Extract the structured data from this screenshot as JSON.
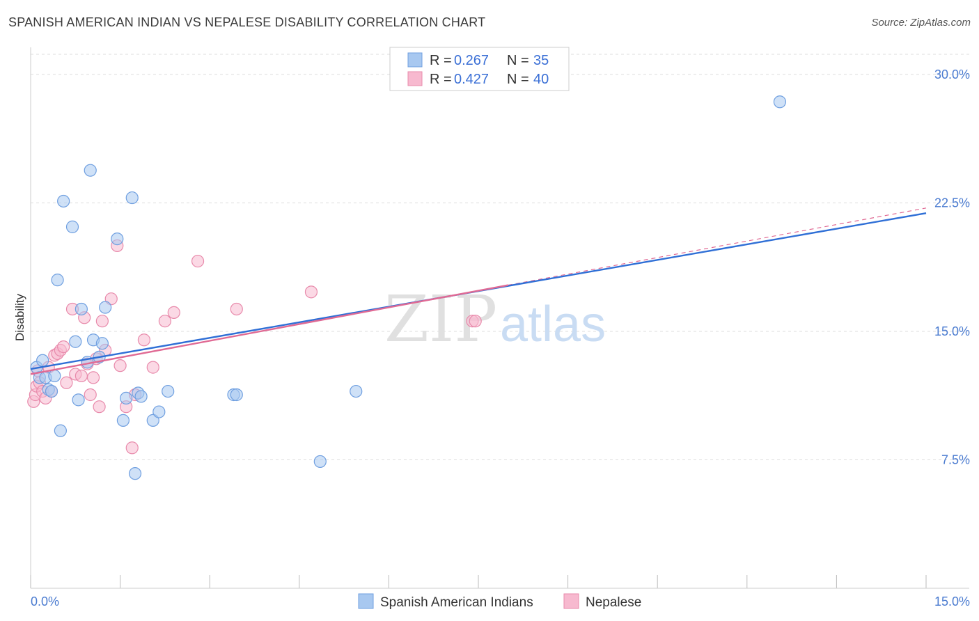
{
  "title": "SPANISH AMERICAN INDIAN VS NEPALESE DISABILITY CORRELATION CHART",
  "source": "Source: ZipAtlas.com",
  "watermark": {
    "part1": "ZIP",
    "part2": "atlas"
  },
  "colors": {
    "blue_fill": "#a8c8f0",
    "blue_stroke": "#6f9fe0",
    "blue_line": "#2f6fd6",
    "pink_fill": "#f7b9cf",
    "pink_stroke": "#e88aab",
    "pink_line": "#e06a94",
    "grid": "#dddddd",
    "axis_text": "#4a7bd0"
  },
  "legend": {
    "rows": [
      {
        "r_label": "R =",
        "r_value": "0.267",
        "n_label": "N =",
        "n_value": "35",
        "series": "blue"
      },
      {
        "r_label": "R =",
        "r_value": "0.427",
        "n_label": "N =",
        "n_value": "40",
        "series": "pink"
      }
    ]
  },
  "bottom_legend": [
    "Spanish American Indians",
    "Nepalese"
  ],
  "chart_data": {
    "type": "scatter",
    "title": "SPANISH AMERICAN INDIAN VS NEPALESE DISABILITY CORRELATION CHART",
    "xlabel": "",
    "ylabel": "Disability",
    "xlim": [
      0,
      15
    ],
    "ylim": [
      0,
      31.5
    ],
    "x_tick_labels": [
      {
        "value": 0,
        "label": "0.0%"
      },
      {
        "value": 15,
        "label": "15.0%"
      }
    ],
    "x_tick_marks": [
      0,
      1.5,
      3,
      4.5,
      6,
      7.5,
      9,
      10.5,
      12,
      13.5,
      15
    ],
    "y_ticks": [
      {
        "value": 7.5,
        "label": "7.5%"
      },
      {
        "value": 15,
        "label": "15.0%"
      },
      {
        "value": 22.5,
        "label": "22.5%"
      },
      {
        "value": 30,
        "label": "30.0%"
      }
    ],
    "series": [
      {
        "name": "Spanish American Indians",
        "color": "blue",
        "r": 0.267,
        "n": 35,
        "trend": {
          "x": [
            0,
            15
          ],
          "y": [
            12.8,
            21.9
          ]
        },
        "points": [
          [
            0.1,
            12.9
          ],
          [
            0.15,
            12.3
          ],
          [
            0.2,
            13.3
          ],
          [
            0.25,
            12.3
          ],
          [
            0.3,
            11.6
          ],
          [
            0.35,
            11.5
          ],
          [
            0.4,
            12.4
          ],
          [
            0.45,
            18.0
          ],
          [
            0.5,
            9.2
          ],
          [
            0.55,
            22.6
          ],
          [
            0.7,
            21.1
          ],
          [
            0.75,
            14.4
          ],
          [
            0.8,
            11.0
          ],
          [
            0.85,
            16.3
          ],
          [
            0.95,
            13.2
          ],
          [
            1.0,
            24.4
          ],
          [
            1.05,
            14.5
          ],
          [
            1.15,
            13.5
          ],
          [
            1.2,
            14.3
          ],
          [
            1.25,
            16.4
          ],
          [
            1.45,
            20.4
          ],
          [
            1.55,
            9.8
          ],
          [
            1.6,
            11.1
          ],
          [
            1.7,
            22.8
          ],
          [
            1.75,
            6.7
          ],
          [
            1.8,
            11.4
          ],
          [
            1.85,
            11.2
          ],
          [
            2.05,
            9.8
          ],
          [
            2.15,
            10.3
          ],
          [
            2.3,
            11.5
          ],
          [
            3.4,
            11.3
          ],
          [
            3.45,
            11.3
          ],
          [
            4.85,
            7.4
          ],
          [
            5.45,
            11.5
          ],
          [
            12.55,
            28.4
          ]
        ]
      },
      {
        "name": "Nepalese",
        "color": "pink",
        "r": 0.427,
        "n": 40,
        "trend": {
          "x": [
            0,
            8.0
          ],
          "y": [
            12.5,
            17.7
          ]
        },
        "trend_dashed": {
          "x": [
            8.0,
            15
          ],
          "y": [
            17.7,
            22.2
          ]
        },
        "points": [
          [
            0.05,
            10.9
          ],
          [
            0.08,
            11.3
          ],
          [
            0.1,
            11.8
          ],
          [
            0.15,
            12.0
          ],
          [
            0.2,
            11.5
          ],
          [
            0.25,
            11.1
          ],
          [
            0.3,
            12.9
          ],
          [
            0.35,
            11.5
          ],
          [
            0.4,
            13.6
          ],
          [
            0.45,
            13.7
          ],
          [
            0.5,
            13.9
          ],
          [
            0.55,
            14.1
          ],
          [
            0.6,
            12.0
          ],
          [
            0.7,
            16.3
          ],
          [
            0.75,
            12.5
          ],
          [
            0.85,
            12.4
          ],
          [
            0.9,
            15.8
          ],
          [
            0.95,
            13.1
          ],
          [
            1.0,
            11.3
          ],
          [
            1.05,
            12.3
          ],
          [
            1.1,
            13.4
          ],
          [
            1.15,
            10.6
          ],
          [
            1.2,
            15.6
          ],
          [
            1.25,
            13.9
          ],
          [
            1.35,
            16.9
          ],
          [
            1.45,
            20.0
          ],
          [
            1.5,
            13.0
          ],
          [
            1.6,
            10.6
          ],
          [
            1.7,
            8.2
          ],
          [
            1.75,
            11.3
          ],
          [
            1.9,
            14.5
          ],
          [
            2.05,
            12.9
          ],
          [
            2.25,
            15.6
          ],
          [
            2.4,
            16.1
          ],
          [
            2.8,
            19.1
          ],
          [
            3.45,
            16.3
          ],
          [
            4.7,
            17.3
          ],
          [
            7.4,
            15.6
          ],
          [
            7.45,
            15.6
          ],
          [
            0.12,
            12.7
          ]
        ]
      }
    ]
  }
}
